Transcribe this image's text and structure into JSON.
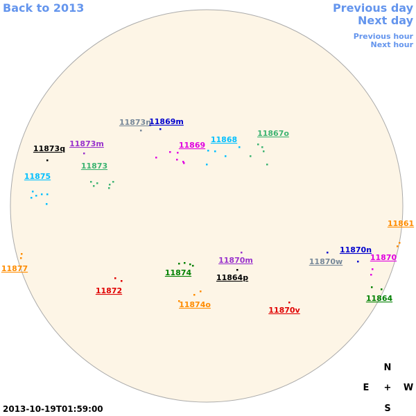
{
  "nav": {
    "back": "Back to 2013",
    "previous_day": "Previous day",
    "next_day": "Next day",
    "previous_hour": "Previous hour",
    "next_hour": "Next hour"
  },
  "timestamp": "2013-10-19T01:59:00",
  "compass": {
    "north": "N",
    "east": "E",
    "center": "+",
    "west": "W",
    "south": "S"
  },
  "regions": [
    {
      "label": "11873n",
      "color": "#778899"
    },
    {
      "label": "11869m",
      "color": "#0000cd"
    },
    {
      "label": "11873m",
      "color": "#9932cc"
    },
    {
      "label": "11873q",
      "color": "#000000"
    },
    {
      "label": "11869",
      "color": "#e000e0"
    },
    {
      "label": "11868",
      "color": "#00bfff"
    },
    {
      "label": "11867o",
      "color": "#3cb371"
    },
    {
      "label": "11873",
      "color": "#3cb371"
    },
    {
      "label": "11875",
      "color": "#00bfff"
    },
    {
      "label": "11861",
      "color": "#ff8c00"
    },
    {
      "label": "11870n",
      "color": "#0000cd"
    },
    {
      "label": "11870",
      "color": "#e000e0"
    },
    {
      "label": "11870w",
      "color": "#778899"
    },
    {
      "label": "11870m",
      "color": "#9932cc"
    },
    {
      "label": "11874",
      "color": "#008000"
    },
    {
      "label": "11864p",
      "color": "#000000"
    },
    {
      "label": "11877",
      "color": "#ff8c00"
    },
    {
      "label": "11872",
      "color": "#e00000"
    },
    {
      "label": "11874o",
      "color": "#ff8c00"
    },
    {
      "label": "11870v",
      "color": "#e00000"
    },
    {
      "label": "11864",
      "color": "#008000"
    }
  ]
}
